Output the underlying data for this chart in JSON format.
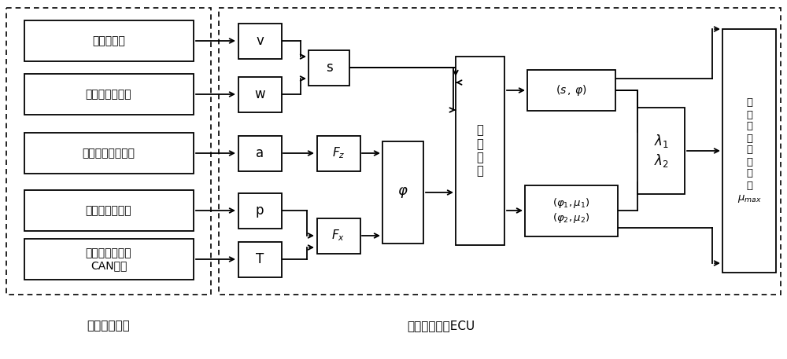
{
  "bg_color": "#ffffff",
  "fig_width": 10.0,
  "fig_height": 4.57,
  "sensors": [
    "车速传感器",
    "车轮转速传感器",
    "质心加速度传感器",
    "轮缸压力传感器",
    "发动机控制单元\nCAN总线"
  ],
  "label_collect": "信息采集单元",
  "label_process": "信息处理单元ECU"
}
